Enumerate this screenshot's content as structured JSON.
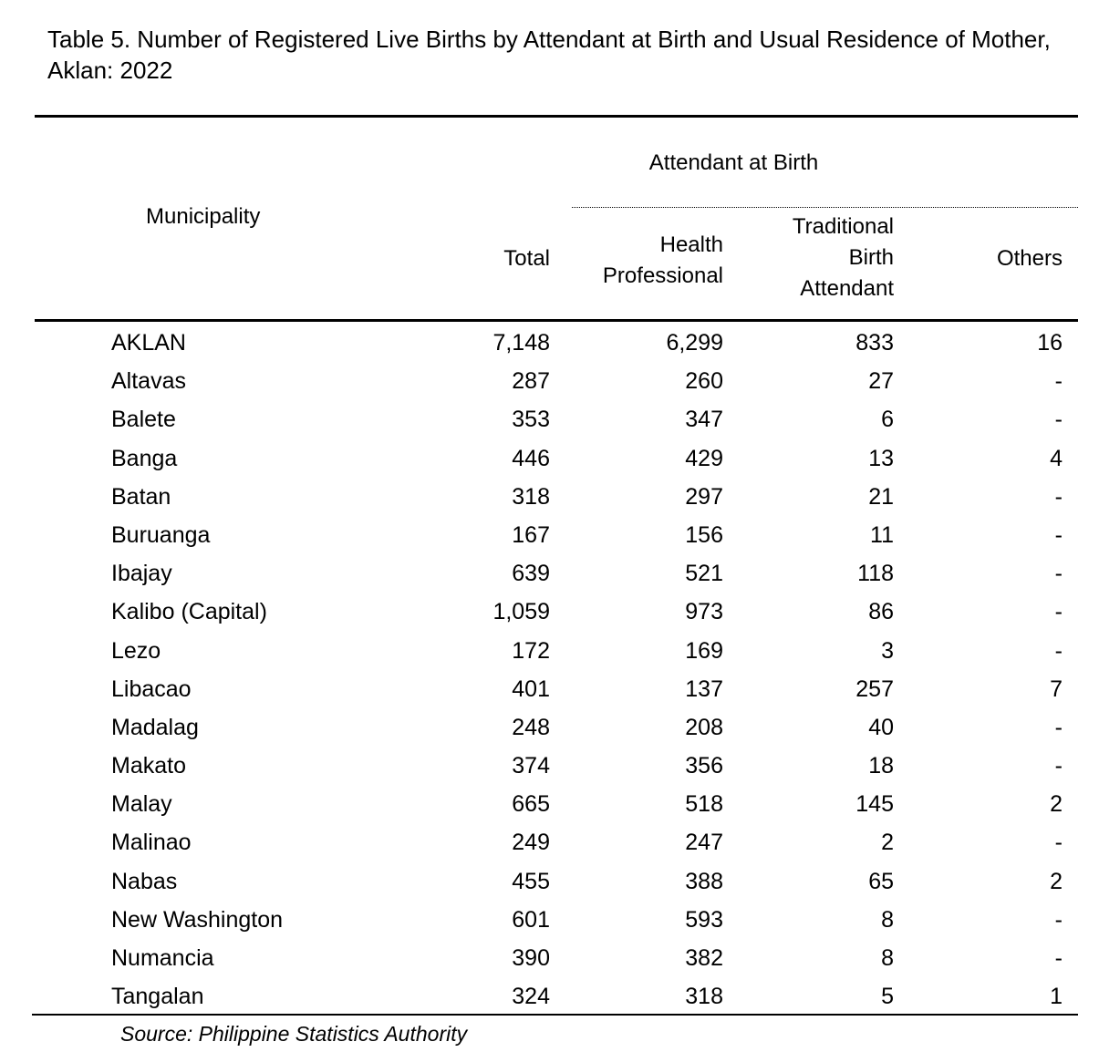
{
  "title": "Table 5.  Number of Registered Live Births by Attendant at Birth and Usual Residence of Mother, Aklan: 2022",
  "headers": {
    "group": "Attendant at Birth",
    "municipality": "Municipality",
    "total": "Total",
    "health_professional": [
      "Health",
      "Professional"
    ],
    "traditional_birth_attendant": [
      "Traditional",
      "Birth",
      "Attendant"
    ],
    "others": "Others"
  },
  "rows": [
    {
      "name": "AKLAN",
      "total": "7,148",
      "health": "6,299",
      "tba": "833",
      "others": "16"
    },
    {
      "name": "Altavas",
      "total": "287",
      "health": "260",
      "tba": "27",
      "others": "-"
    },
    {
      "name": "Balete",
      "total": "353",
      "health": "347",
      "tba": "6",
      "others": "-"
    },
    {
      "name": "Banga",
      "total": "446",
      "health": "429",
      "tba": "13",
      "others": "4"
    },
    {
      "name": "Batan",
      "total": "318",
      "health": "297",
      "tba": "21",
      "others": "-"
    },
    {
      "name": "Buruanga",
      "total": "167",
      "health": "156",
      "tba": "11",
      "others": "-"
    },
    {
      "name": "Ibajay",
      "total": "639",
      "health": "521",
      "tba": "118",
      "others": "-"
    },
    {
      "name": "Kalibo (Capital)",
      "total": "1,059",
      "health": "973",
      "tba": "86",
      "others": "-"
    },
    {
      "name": "Lezo",
      "total": "172",
      "health": "169",
      "tba": "3",
      "others": "-"
    },
    {
      "name": "Libacao",
      "total": "401",
      "health": "137",
      "tba": "257",
      "others": "7"
    },
    {
      "name": "Madalag",
      "total": "248",
      "health": "208",
      "tba": "40",
      "others": "-"
    },
    {
      "name": "Makato",
      "total": "374",
      "health": "356",
      "tba": "18",
      "others": "-"
    },
    {
      "name": "Malay",
      "total": "665",
      "health": "518",
      "tba": "145",
      "others": "2"
    },
    {
      "name": "Malinao",
      "total": "249",
      "health": "247",
      "tba": "2",
      "others": "-"
    },
    {
      "name": "Nabas",
      "total": "455",
      "health": "388",
      "tba": "65",
      "others": "2"
    },
    {
      "name": "New Washington",
      "total": "601",
      "health": "593",
      "tba": "8",
      "others": "-"
    },
    {
      "name": "Numancia",
      "total": "390",
      "health": "382",
      "tba": "8",
      "others": "-"
    },
    {
      "name": "Tangalan",
      "total": "324",
      "health": "318",
      "tba": "5",
      "others": "1"
    }
  ],
  "source": "Source: Philippine Statistics Authority"
}
